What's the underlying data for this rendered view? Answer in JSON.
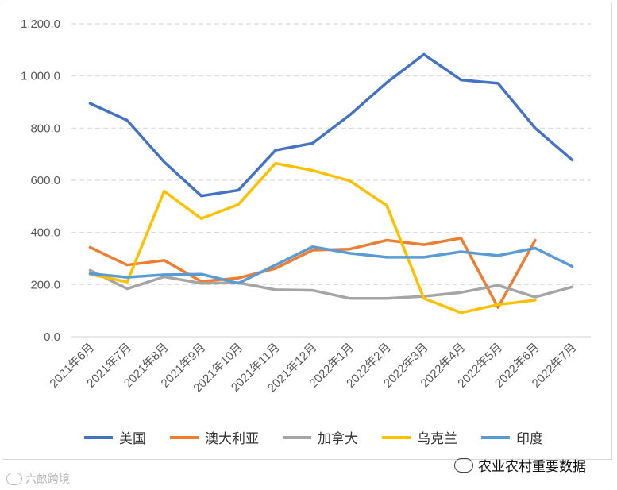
{
  "chart_data": {
    "type": "line",
    "title": "",
    "xlabel": "",
    "ylabel": "",
    "ylim": [
      0,
      1200
    ],
    "yticks": [
      "0.0",
      "200.0",
      "400.0",
      "600.0",
      "800.0",
      "1,000.0",
      "1,200.0"
    ],
    "grid": "horizontal dashed",
    "legend_position": "bottom",
    "categories": [
      "2021年6月",
      "2021年7月",
      "2021年8月",
      "2021年9月",
      "2021年10月",
      "2021年11月",
      "2021年12月",
      "2022年1月",
      "2022年2月",
      "2022年3月",
      "2022年4月",
      "2022年5月",
      "2022年6月",
      "2022年7月"
    ],
    "series": [
      {
        "name": "美国",
        "color": "#4472C4",
        "values": [
          895,
          830,
          670,
          540,
          562,
          715,
          742,
          850,
          975,
          1083,
          985,
          972,
          800,
          678
        ]
      },
      {
        "name": "澳大利亚",
        "color": "#ED7D31",
        "values": [
          343,
          275,
          293,
          212,
          225,
          262,
          332,
          336,
          370,
          353,
          378,
          112,
          370,
          null
        ]
      },
      {
        "name": "加拿大",
        "color": "#A5A5A5",
        "values": [
          255,
          184,
          230,
          205,
          207,
          180,
          178,
          147,
          147,
          155,
          170,
          197,
          152,
          191
        ]
      },
      {
        "name": "乌克兰",
        "color": "#FFC000",
        "values": [
          240,
          210,
          558,
          453,
          507,
          665,
          638,
          598,
          503,
          147,
          92,
          123,
          140,
          null
        ]
      },
      {
        "name": "印度",
        "color": "#5B9BD5",
        "values": [
          242,
          228,
          238,
          240,
          205,
          275,
          345,
          320,
          305,
          305,
          326,
          311,
          340,
          270
        ]
      }
    ]
  },
  "watermarks": {
    "right": "农业农村重要数据",
    "left": "六畝跨境"
  }
}
